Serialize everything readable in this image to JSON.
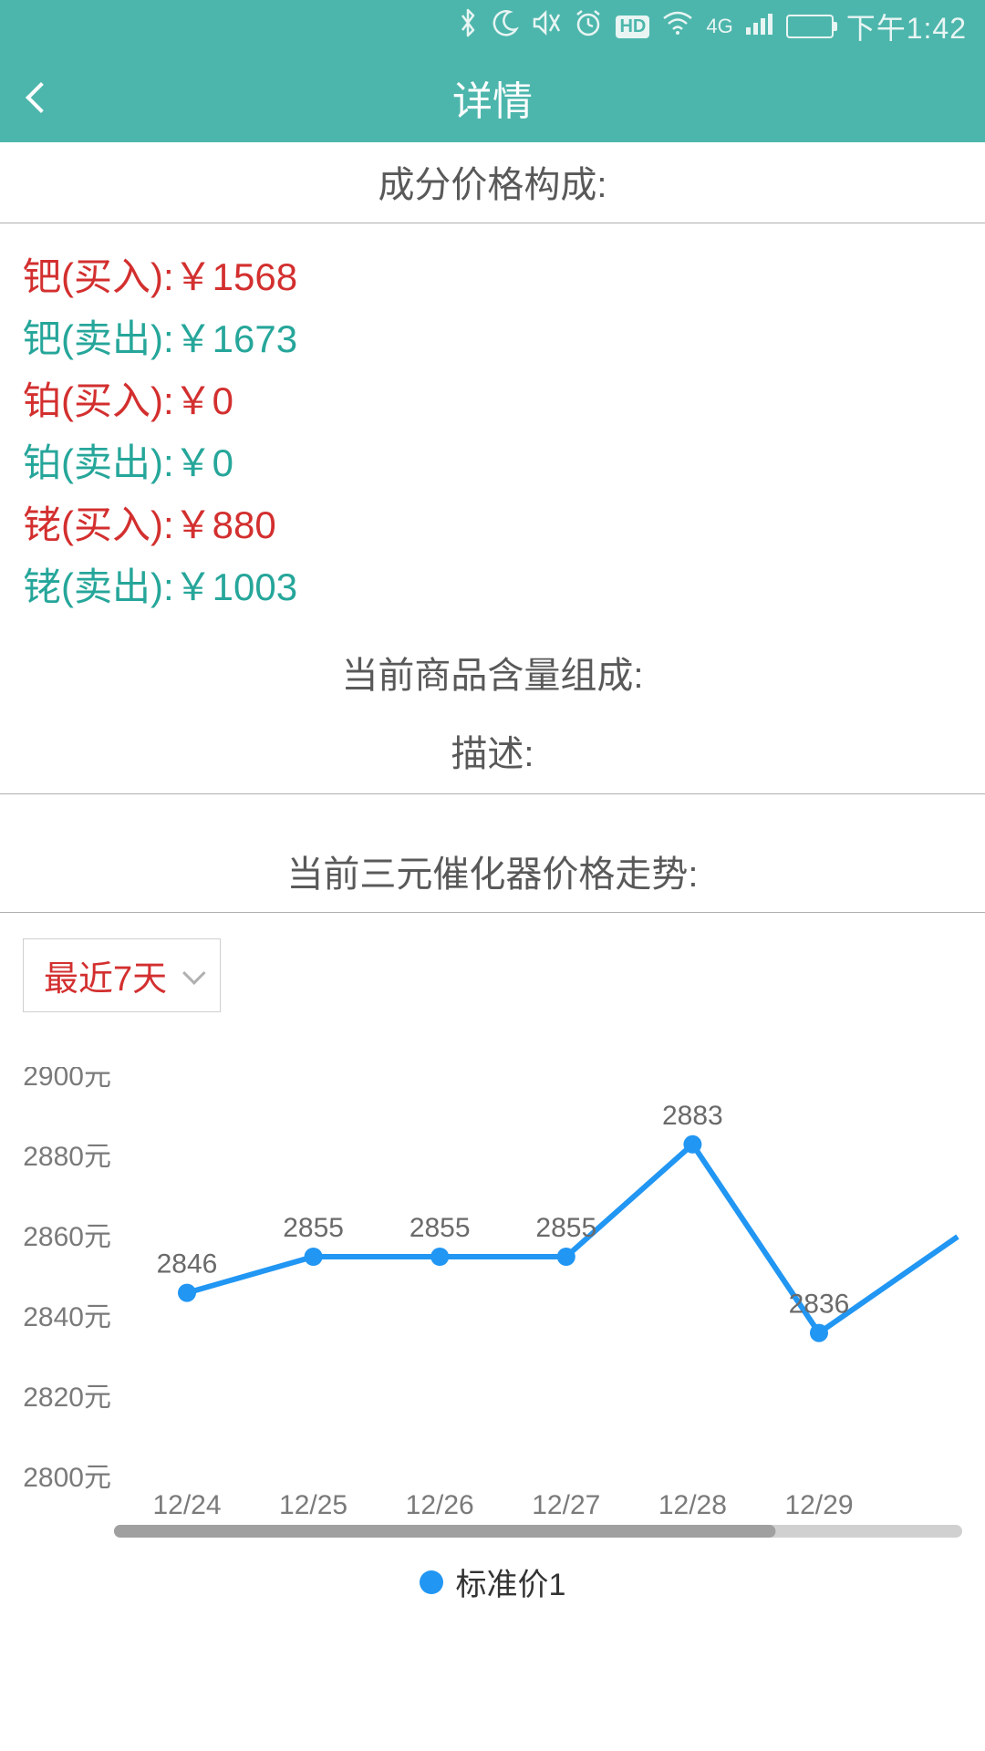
{
  "status_bar": {
    "time": "下午1:42",
    "network_label": "4G",
    "hd_label": "HD"
  },
  "nav": {
    "title": "详情"
  },
  "colors": {
    "brand": "#4db6ac",
    "buy": "#d32f2f",
    "sell": "#26a69a",
    "chart_line": "#2196f3",
    "chart_dot": "#2196f3",
    "axis_text": "#7a7a7a",
    "value_text": "#6a6a6a",
    "divider": "#b0b0b0",
    "scrollbar_track": "#d0d0d0",
    "scrollbar_thumb": "#a0a0a0",
    "background": "#ffffff"
  },
  "sections": {
    "composition_title": "成分价格构成:",
    "content_title": "当前商品含量组成:",
    "description_label": "描述:",
    "trend_title": "当前三元催化器价格走势:"
  },
  "prices": {
    "pd_buy": {
      "label": "钯(买入):",
      "value": "￥1568"
    },
    "pd_sell": {
      "label": "钯(卖出):",
      "value": "￥1673"
    },
    "pt_buy": {
      "label": "铂(买入):",
      "value": "￥0"
    },
    "pt_sell": {
      "label": "铂(卖出):",
      "value": "￥0"
    },
    "rh_buy": {
      "label": "铑(买入):",
      "value": "￥880"
    },
    "rh_sell": {
      "label": "铑(卖出):",
      "value": "￥1003"
    }
  },
  "dropdown": {
    "selected": "最近7天"
  },
  "chart": {
    "type": "line",
    "legend_label": "标准价1",
    "line_color": "#2196f3",
    "marker_color": "#2196f3",
    "marker_radius": 10,
    "line_width": 6,
    "y_unit": "元",
    "ylim": [
      2800,
      2900
    ],
    "ytick_step": 20,
    "y_ticks": [
      "2900元",
      "2880元",
      "2860元",
      "2840元",
      "2820元",
      "2800元"
    ],
    "x_labels": [
      "12/24",
      "12/25",
      "12/26",
      "12/27",
      "12/28",
      "12/29"
    ],
    "values": [
      2846,
      2855,
      2855,
      2855,
      2883,
      2836
    ],
    "extra_tail_value": 2860,
    "label_fontsize": 30,
    "background_color": "#ffffff"
  }
}
